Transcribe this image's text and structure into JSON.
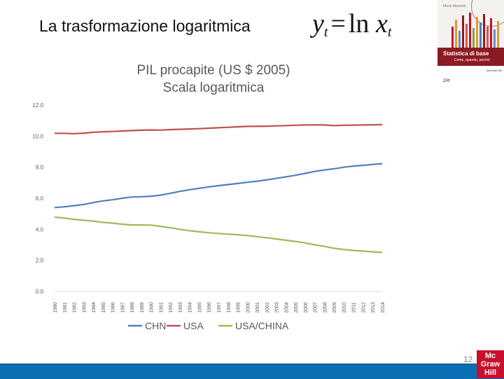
{
  "slide": {
    "title": "La trasformazione logaritmica",
    "formula": {
      "lhs": "y",
      "sub": "t",
      "op": "=",
      "fn": "ln",
      "var": "x"
    },
    "page_number": "12"
  },
  "book": {
    "author": "Mario Mazzoni",
    "title": "Statistica di base",
    "subtitle": "Come, quando, perché",
    "publisher": "McGraw-Hill",
    "stamp": "2/e",
    "colors": {
      "band": "#8b1a22",
      "accent": "#c8102e"
    }
  },
  "logo": {
    "lines": [
      "Mc",
      "Graw",
      "Hill"
    ],
    "color": "#c8102e"
  },
  "chart_data": {
    "type": "line",
    "title": "PIL procapite (US $ 2005)",
    "subtitle": "Scala logaritmica",
    "xlabel": "",
    "ylabel": "",
    "ylim": [
      0,
      12
    ],
    "yticks": [
      "0.0",
      "2.0",
      "4.0",
      "6.0",
      "8.0",
      "10.0",
      "12.0"
    ],
    "grid": false,
    "legend_position": "bottom",
    "x": [
      "1980",
      "1981",
      "1982",
      "1983",
      "1984",
      "1985",
      "1986",
      "1987",
      "1988",
      "1989",
      "1990",
      "1991",
      "1992",
      "1993",
      "1994",
      "1995",
      "1996",
      "1997",
      "1998",
      "1999",
      "2000",
      "2001",
      "2002",
      "2003",
      "2004",
      "2005",
      "2006",
      "2007",
      "2008",
      "2009",
      "2010",
      "2011",
      "2012",
      "2013",
      "2014"
    ],
    "series": [
      {
        "name": "CHN",
        "color": "#4f81bd",
        "values": [
          5.4,
          5.45,
          5.52,
          5.6,
          5.72,
          5.83,
          5.9,
          6.0,
          6.08,
          6.1,
          6.13,
          6.2,
          6.32,
          6.44,
          6.55,
          6.64,
          6.73,
          6.81,
          6.88,
          6.95,
          7.03,
          7.1,
          7.18,
          7.28,
          7.38,
          7.48,
          7.6,
          7.73,
          7.82,
          7.9,
          8.0,
          8.07,
          8.12,
          8.18,
          8.23
        ]
      },
      {
        "name": "USA",
        "color": "#c0504d",
        "values": [
          10.18,
          10.18,
          10.16,
          10.19,
          10.25,
          10.28,
          10.3,
          10.33,
          10.36,
          10.38,
          10.4,
          10.39,
          10.42,
          10.44,
          10.46,
          10.48,
          10.51,
          10.54,
          10.57,
          10.6,
          10.63,
          10.63,
          10.64,
          10.66,
          10.68,
          10.7,
          10.72,
          10.73,
          10.72,
          10.68,
          10.7,
          10.71,
          10.72,
          10.73,
          10.74
        ]
      },
      {
        "name": "USA/CHINA",
        "color": "#9bbb59",
        "values": [
          4.78,
          4.73,
          4.64,
          4.59,
          4.53,
          4.45,
          4.4,
          4.33,
          4.28,
          4.28,
          4.27,
          4.19,
          4.1,
          4.0,
          3.91,
          3.84,
          3.78,
          3.73,
          3.69,
          3.65,
          3.6,
          3.53,
          3.46,
          3.38,
          3.3,
          3.22,
          3.12,
          3.0,
          2.9,
          2.78,
          2.7,
          2.64,
          2.6,
          2.55,
          2.51
        ]
      }
    ]
  }
}
